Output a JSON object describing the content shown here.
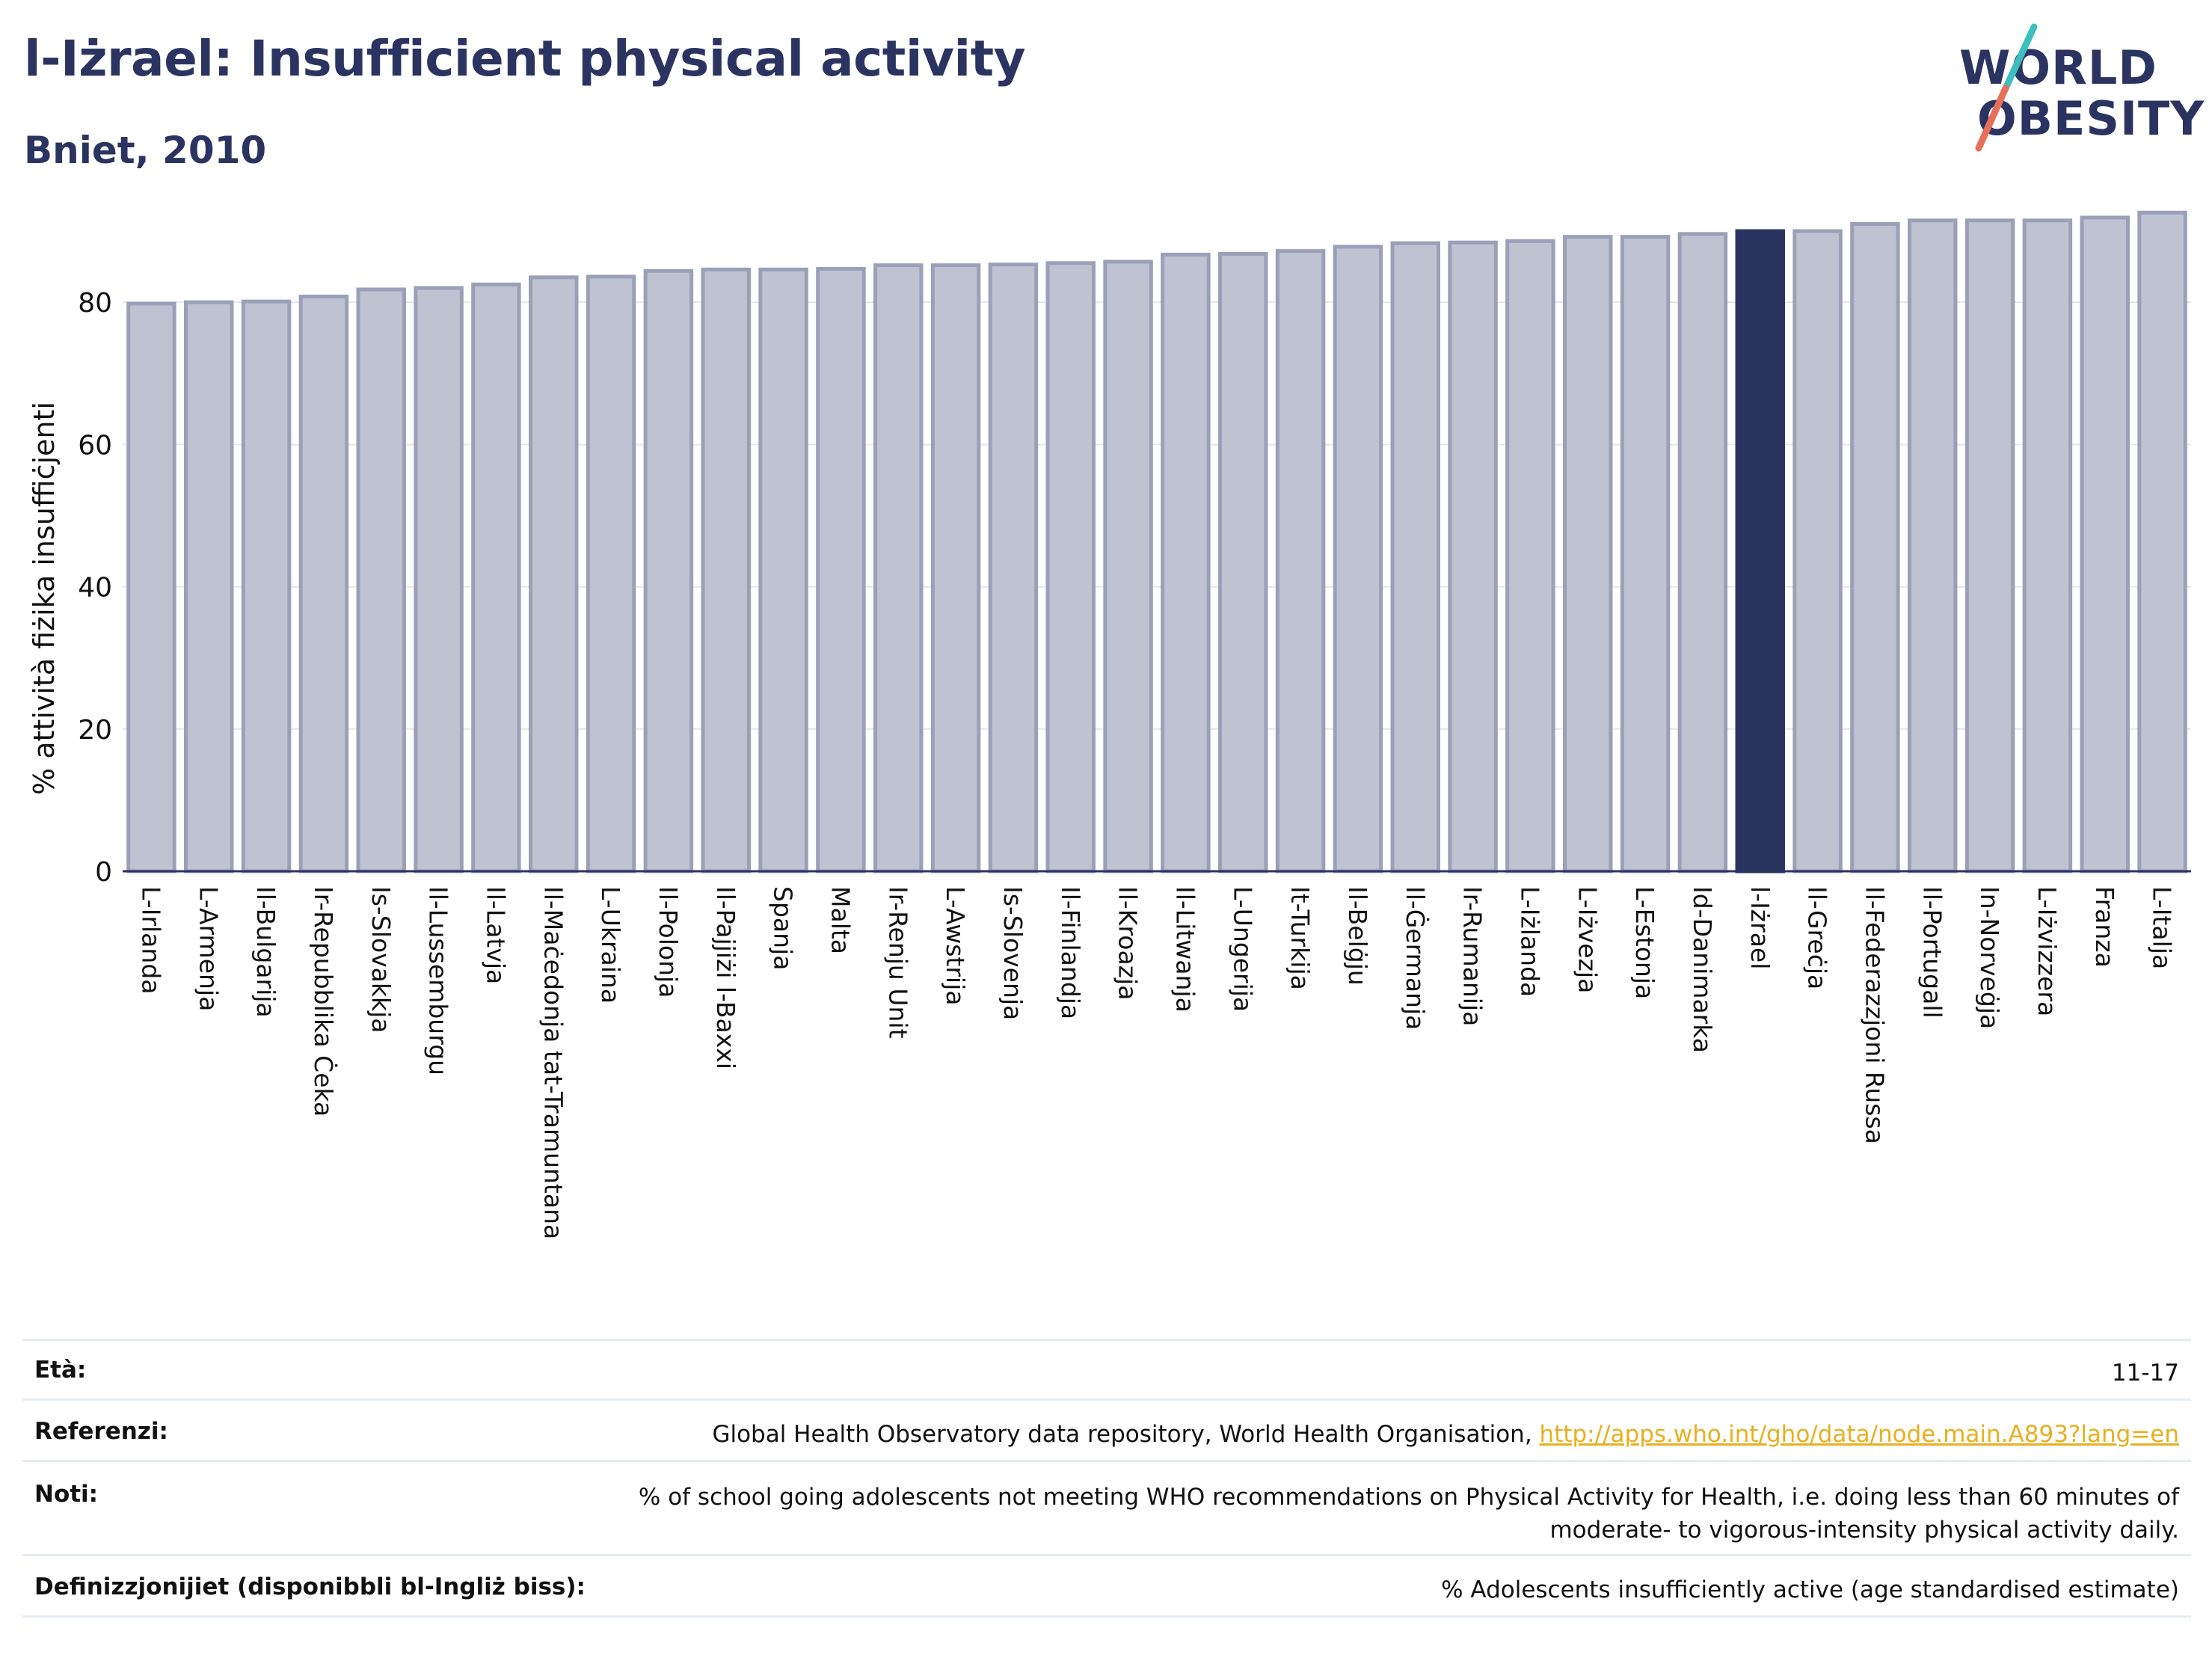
{
  "header": {
    "title": "l-Iżrael: Insufficient physical activity",
    "subtitle": "Bniet, 2010"
  },
  "logo": {
    "line1": "WORLD",
    "line2": "OBESITY",
    "slash_colors": [
      "#3dbfbf",
      "#e8705a"
    ]
  },
  "colors": {
    "bar_default": "#bfc3d1",
    "bar_default_edge": "#9aa0b8",
    "bar_highlight": "#2b3461",
    "text_dark": "#2b3461",
    "link": "#e8b020"
  },
  "chart_data": {
    "type": "bar",
    "ylabel": "% attività fiżika insuffiċjenti",
    "xlabel": "",
    "ylim": [
      0,
      92
    ],
    "yticks": [
      0,
      20,
      40,
      60,
      80
    ],
    "grid": true,
    "highlight": "l-Iżrael",
    "categories": [
      "L-Irlanda",
      "L-Armenja",
      "Il-Bulgarija",
      "Ir-Repubblika Ċeka",
      "Is-Slovakkja",
      "Il-Lussemburgu",
      "Il-Latvja",
      "Il-Maċedonja tat-Tramuntana",
      "L-Ukraina",
      "Il-Polonja",
      "Il-Pajjiżi l-Baxxi",
      "Spanja",
      "Malta",
      "Ir-Renju Unit",
      "L-Awstrija",
      "Is-Slovenja",
      "Il-Finlandja",
      "Il-Kroazja",
      "Il-Litwanja",
      "L-Ungerija",
      "It-Turkija",
      "Il-Belġju",
      "Il-Ġermanja",
      "Ir-Rumanija",
      "L-Iżlanda",
      "L-Iżvezja",
      "L-Estonja",
      "Id-Danimarka",
      "l-Iżrael",
      "Il-Greċja",
      "Il-Federazzjoni Russa",
      "Il-Portugall",
      "In-Norveġja",
      "L-Iżvizzera",
      "Franza",
      "L-Italja"
    ],
    "values": [
      79.8,
      80.0,
      80.1,
      80.8,
      81.8,
      82.0,
      82.5,
      83.5,
      83.6,
      84.4,
      84.6,
      84.6,
      84.7,
      85.2,
      85.2,
      85.3,
      85.5,
      85.7,
      86.7,
      86.8,
      87.2,
      87.8,
      88.3,
      88.4,
      88.6,
      89.2,
      89.2,
      89.6,
      90.0,
      90.0,
      91.0,
      91.5,
      91.5,
      91.5,
      91.9,
      92.6
    ]
  },
  "meta": {
    "age": {
      "label": "Età:",
      "value": "11-17"
    },
    "references": {
      "label": "Referenzi:",
      "text": "Global Health Observatory data repository, World Health Organisation, ",
      "link": "http://apps.who.int/gho/data/node.main.A893?lang=en"
    },
    "notes": {
      "label": "Noti:",
      "line1": "% of school going adolescents not meeting WHO recommendations on Physical Activity for Health, i.e. doing less than 60 minutes of",
      "line2": "moderate- to vigorous-intensity physical activity daily."
    },
    "definitions": {
      "label": "Definizzjonijiet (disponibbli bl-Ingliż biss):",
      "value": "% Adolescents insufficiently active (age standardised estimate)"
    }
  }
}
